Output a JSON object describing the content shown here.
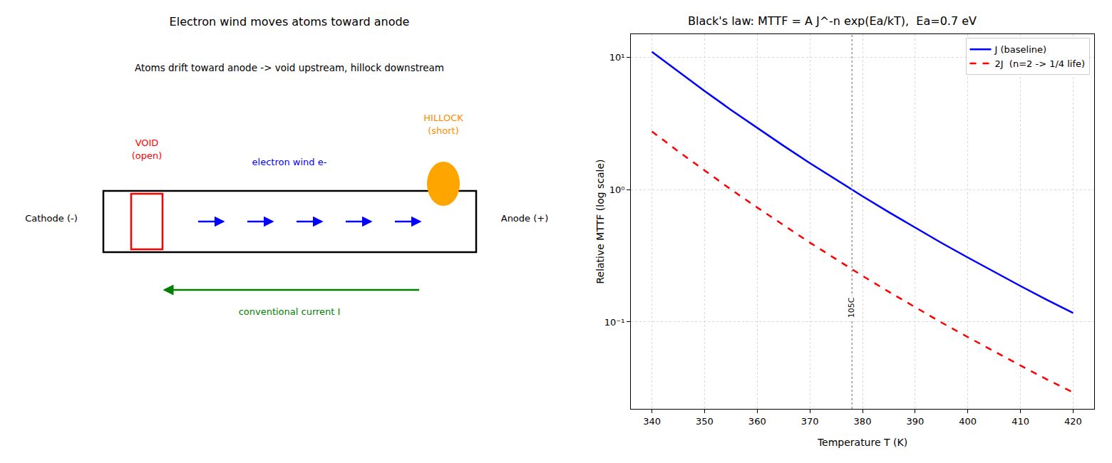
{
  "diagram": {
    "title": "Electron wind moves atoms toward anode",
    "subtitle": "Atoms drift toward anode -> void upstream, hillock downstream",
    "cathode": "Cathode (-)",
    "anode": "Anode (+)",
    "void": [
      "VOID",
      "(open)"
    ],
    "hillock": [
      "HILLOCK",
      "(short)"
    ],
    "electron_wind": "electron wind e-",
    "current": "conventional current I"
  },
  "chart_data": {
    "type": "line",
    "title": "Black's law: MTTF = A J^-n exp(Ea/kT),  Ea=0.7 eV",
    "x_label": "Temperature T (K)",
    "y_label": "Relative MTTF (log scale)",
    "x": [
      340,
      345,
      350,
      355,
      360,
      365,
      370,
      375,
      380,
      385,
      390,
      395,
      400,
      405,
      410,
      415,
      420
    ],
    "series": [
      {
        "name": "J (baseline)",
        "color": "#0000ff",
        "line_style": "solid",
        "values": [
          11.05,
          7.81,
          5.58,
          4.02,
          2.93,
          2.15,
          1.59,
          1.19,
          0.893,
          0.676,
          0.516,
          0.396,
          0.307,
          0.239,
          0.187,
          0.147,
          0.117
        ]
      },
      {
        "name": "2J  (n=2 -> 1/4 life)",
        "color": "#ff0000",
        "line_style": "dashed",
        "values": [
          2.76,
          1.95,
          1.4,
          1.005,
          0.733,
          0.538,
          0.398,
          0.298,
          0.223,
          0.169,
          0.129,
          0.099,
          0.0768,
          0.0598,
          0.0468,
          0.0368,
          0.0293
        ]
      }
    ],
    "xlim": [
      336,
      424
    ],
    "xticks": [
      340,
      350,
      360,
      370,
      380,
      390,
      400,
      410,
      420
    ],
    "ylim": [
      0.022,
      15
    ],
    "yticks": [
      {
        "value": 0.1,
        "label": "10⁻¹"
      },
      {
        "value": 1,
        "label": "10⁰"
      },
      {
        "value": 10,
        "label": "10¹"
      }
    ],
    "log": "y",
    "grid": true,
    "legend": "upper right",
    "annotations": [
      {
        "x": 378,
        "text": "105C"
      }
    ]
  }
}
